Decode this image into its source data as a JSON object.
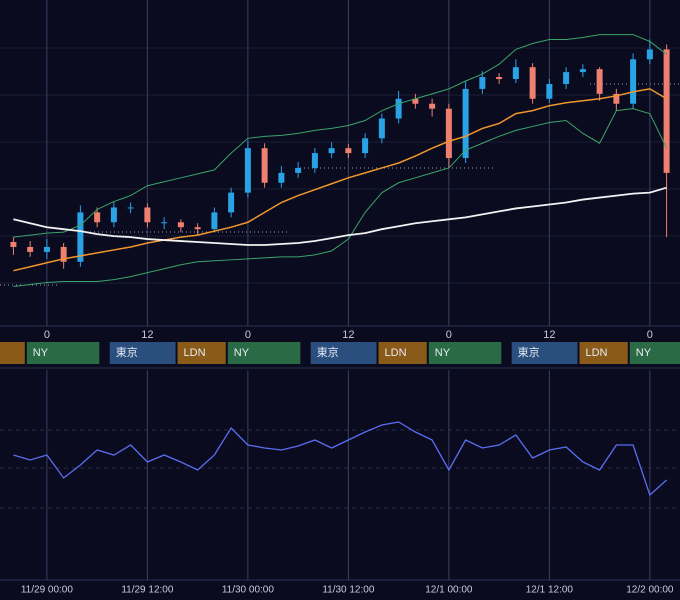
{
  "chart_data": [
    {
      "type": "candlestick",
      "x": [
        -4,
        -2,
        0,
        2,
        4,
        6,
        8,
        10,
        12,
        14,
        16,
        18,
        20,
        22,
        24,
        26,
        28,
        30,
        32,
        34,
        36,
        38,
        40,
        42,
        44,
        46,
        48,
        50,
        52,
        54,
        56,
        58,
        60,
        62,
        64,
        66,
        68,
        70,
        72,
        74
      ],
      "open": [
        85,
        80,
        75,
        80,
        65,
        115,
        105,
        120,
        120,
        105,
        105,
        100,
        98,
        115,
        135,
        180,
        145,
        155,
        160,
        175,
        180,
        175,
        190,
        210,
        230,
        225,
        220,
        170,
        240,
        252,
        250,
        262,
        230,
        245,
        257,
        260,
        235,
        225,
        270,
        280
      ],
      "high": [
        90,
        86,
        88,
        84,
        122,
        120,
        126,
        125,
        124,
        110,
        108,
        104,
        120,
        140,
        188,
        185,
        162,
        166,
        180,
        186,
        184,
        195,
        215,
        238,
        235,
        230,
        225,
        248,
        258,
        256,
        270,
        266,
        250,
        262,
        265,
        262,
        240,
        276,
        290,
        285
      ],
      "low": [
        72,
        70,
        68,
        58,
        60,
        100,
        100,
        114,
        100,
        98,
        95,
        92,
        95,
        110,
        130,
        140,
        140,
        150,
        155,
        170,
        170,
        170,
        185,
        205,
        220,
        212,
        160,
        165,
        235,
        245,
        246,
        225,
        226,
        240,
        252,
        228,
        218,
        220,
        265,
        90
      ],
      "close": [
        80,
        75,
        80,
        65,
        115,
        105,
        120,
        120,
        105,
        105,
        100,
        98,
        115,
        135,
        180,
        145,
        155,
        160,
        175,
        180,
        175,
        190,
        210,
        230,
        225,
        220,
        170,
        240,
        252,
        250,
        262,
        230,
        245,
        257,
        260,
        235,
        225,
        270,
        280,
        155
      ],
      "up_color": "#29a3e6",
      "down_color": "#ef7f6f",
      "lines": [
        {
          "color": "#3aa56a",
          "values": [
            90,
            92,
            94,
            95,
            102,
            118,
            126,
            132,
            142,
            146,
            150,
            154,
            158,
            175,
            190,
            192,
            193,
            195,
            198,
            200,
            203,
            208,
            218,
            225,
            230,
            235,
            240,
            248,
            255,
            265,
            280,
            286,
            290,
            290,
            292,
            295,
            295,
            295,
            288,
            275
          ]
        },
        {
          "color": "#3aa56a",
          "values": [
            40,
            42,
            44,
            45,
            45,
            45,
            47,
            50,
            54,
            58,
            62,
            65,
            66,
            67,
            68,
            69,
            70,
            70,
            72,
            76,
            88,
            115,
            135,
            145,
            150,
            155,
            160,
            178,
            185,
            192,
            198,
            202,
            206,
            208,
            195,
            185,
            218,
            220,
            215,
            180
          ]
        },
        {
          "color": "#f0962e",
          "values": [
            56,
            60,
            64,
            68,
            71,
            74,
            77,
            80,
            84,
            87,
            90,
            92,
            96,
            100,
            105,
            115,
            125,
            132,
            138,
            144,
            150,
            155,
            160,
            165,
            172,
            180,
            187,
            192,
            200,
            205,
            215,
            218,
            223,
            226,
            228,
            230,
            233,
            237,
            240,
            230
          ]
        },
        {
          "color": "#f2f2f2",
          "values": [
            108,
            104,
            100,
            98,
            96,
            93,
            91,
            90,
            88,
            87,
            86,
            85,
            84,
            83,
            82,
            82,
            83,
            84,
            86,
            89,
            92,
            94,
            98,
            101,
            104,
            106,
            108,
            110,
            113,
            116,
            119,
            121,
            123,
            125,
            128,
            130,
            132,
            134,
            135,
            140
          ]
        }
      ],
      "xlim": [
        -5.6,
        75.6
      ],
      "ylim": [
        0,
        330
      ],
      "xticks": [
        0,
        12,
        {
          "value": 24,
          "label": "0"
        },
        {
          "value": 36,
          "label": "12"
        },
        {
          "value": 48,
          "label": "0"
        },
        {
          "value": 60,
          "label": "12"
        },
        {
          "value": 72,
          "label": "0"
        }
      ],
      "sessions": [
        "東京",
        "LDN",
        "NY"
      ]
    },
    {
      "type": "line",
      "x": [
        -4,
        -2,
        0,
        2,
        4,
        6,
        8,
        10,
        12,
        14,
        16,
        18,
        20,
        22,
        24,
        26,
        28,
        30,
        32,
        34,
        36,
        38,
        40,
        42,
        44,
        46,
        48,
        50,
        52,
        54,
        56,
        58,
        60,
        62,
        64,
        66,
        68,
        70,
        72,
        74
      ],
      "values": [
        125,
        120,
        125,
        102,
        115,
        130,
        125,
        135,
        118,
        125,
        118,
        110,
        125,
        152,
        135,
        132,
        130,
        134,
        140,
        132,
        140,
        148,
        155,
        158,
        148,
        140,
        110,
        140,
        132,
        135,
        145,
        122,
        130,
        133,
        118,
        110,
        135,
        135,
        85,
        100
      ],
      "color": "#5a6ef0",
      "xlim": [
        -5.6,
        75.6
      ],
      "ylim": [
        0,
        210
      ],
      "xticks": [
        {
          "value": 0,
          "label": "11/29 00:00"
        },
        {
          "value": 12,
          "label": "11/29 12:00"
        },
        {
          "value": 24,
          "label": "11/30 00:00"
        },
        {
          "value": 36,
          "label": "11/30 12:00"
        },
        {
          "value": 48,
          "label": "12/1 00:00"
        },
        {
          "value": 60,
          "label": "12/1 12:00"
        },
        {
          "value": 72,
          "label": "12/2 00:00"
        }
      ]
    }
  ]
}
